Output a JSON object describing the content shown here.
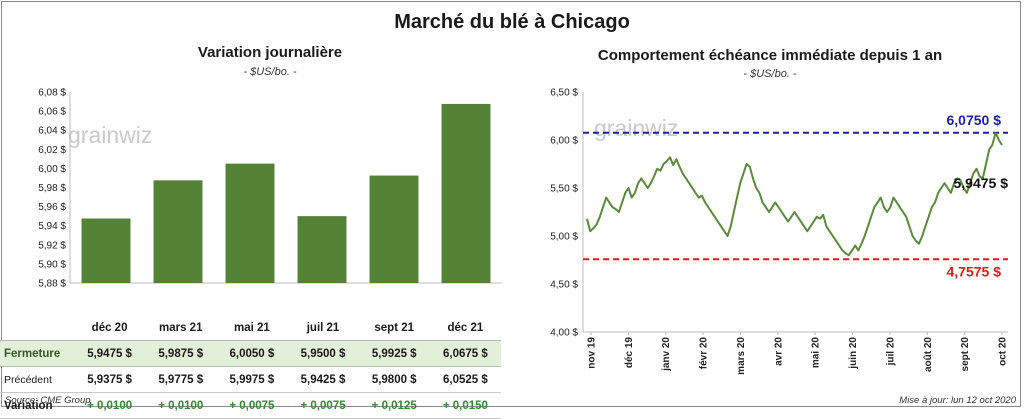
{
  "title": "Marché du blé à Chicago",
  "left_chart": {
    "title": "Variation journalière",
    "unit": "- $US/bo. -",
    "watermark": "grainwiz"
  },
  "right_chart": {
    "title": "Comportement  échéance immédiate depuis 1 an",
    "unit": "- $US/bo. -",
    "watermark": "grainwiz",
    "max_label": "6,0750 $",
    "last_label": "5,9475 $",
    "min_label": "4,7575 $"
  },
  "table": {
    "headers": [
      "déc 20",
      "mars 21",
      "mai 21",
      "juil 21",
      "sept 21",
      "déc 21"
    ],
    "rows": {
      "fermeture": {
        "label": "Fermeture",
        "values": [
          "5,9475  $",
          "5,9875  $",
          "6,0050  $",
          "5,9500  $",
          "5,9925  $",
          "6,0675  $"
        ]
      },
      "precedent": {
        "label": "Précédent",
        "values": [
          "5,9375  $",
          "5,9775  $",
          "5,9975  $",
          "5,9425  $",
          "5,9800  $",
          "6,0525  $"
        ]
      },
      "variation": {
        "label": "Variation",
        "values": [
          "+ 0,0100",
          "+ 0,0100",
          "+ 0,0075",
          "+ 0,0075",
          "+ 0,0125",
          "+ 0,0150"
        ]
      }
    }
  },
  "footer": {
    "source": "Source: CME Group",
    "update": "Mise à jour: lun 12 oct 2020"
  },
  "colors": {
    "bar": "#548235",
    "line": "#5a8a3a",
    "max_line": "#1f1fa8",
    "min_line": "#e21b1b"
  },
  "chart_data": [
    {
      "type": "bar",
      "title": "Variation journalière",
      "ylabel": "$US/bo.",
      "categories": [
        "déc 20",
        "mars 21",
        "mai 21",
        "juil 21",
        "sept 21",
        "déc 21"
      ],
      "values": [
        5.9475,
        5.9875,
        6.005,
        5.95,
        5.9925,
        6.0675
      ],
      "ylim": [
        5.88,
        6.08
      ],
      "yticks": [
        5.88,
        5.9,
        5.92,
        5.94,
        5.96,
        5.98,
        6.0,
        6.02,
        6.04,
        6.06,
        6.08
      ],
      "ytick_labels": [
        "5,88 $",
        "5,90 $",
        "5,92 $",
        "5,94 $",
        "5,96 $",
        "5,98 $",
        "6,00 $",
        "6,02 $",
        "6,04 $",
        "6,06 $",
        "6,08 $"
      ]
    },
    {
      "type": "line",
      "title": "Comportement  échéance immédiate depuis 1 an",
      "ylabel": "$US/bo.",
      "ylim": [
        4.0,
        6.5
      ],
      "yticks": [
        4.0,
        4.5,
        5.0,
        5.5,
        6.0,
        6.5
      ],
      "ytick_labels": [
        "4,00 $",
        "4,50 $",
        "5,00 $",
        "5,50 $",
        "6,00 $",
        "6,50 $"
      ],
      "x_labels": [
        "nov 19",
        "déc 19",
        "janv 20",
        "févr 20",
        "mars 20",
        "avr 20",
        "mai 20",
        "juin 20",
        "juil 20",
        "août 20",
        "sept 20",
        "oct 20"
      ],
      "reference_lines": [
        {
          "name": "max",
          "value": 6.075,
          "label": "6,0750 $"
        },
        {
          "name": "min",
          "value": 4.7575,
          "label": "4,7575 $"
        }
      ],
      "last_value": 5.9475,
      "last_label": "5,9475 $",
      "values": [
        5.18,
        5.05,
        5.08,
        5.12,
        5.2,
        5.3,
        5.4,
        5.35,
        5.3,
        5.28,
        5.25,
        5.35,
        5.45,
        5.5,
        5.4,
        5.45,
        5.55,
        5.6,
        5.55,
        5.5,
        5.55,
        5.62,
        5.7,
        5.68,
        5.75,
        5.78,
        5.82,
        5.74,
        5.8,
        5.72,
        5.65,
        5.6,
        5.55,
        5.5,
        5.45,
        5.4,
        5.42,
        5.35,
        5.3,
        5.25,
        5.2,
        5.15,
        5.1,
        5.05,
        5.0,
        5.1,
        5.25,
        5.4,
        5.55,
        5.65,
        5.75,
        5.72,
        5.6,
        5.5,
        5.45,
        5.35,
        5.3,
        5.25,
        5.3,
        5.35,
        5.3,
        5.25,
        5.2,
        5.15,
        5.2,
        5.25,
        5.2,
        5.15,
        5.1,
        5.05,
        5.1,
        5.15,
        5.2,
        5.18,
        5.22,
        5.1,
        5.05,
        5.0,
        4.95,
        4.9,
        4.85,
        4.82,
        4.8,
        4.85,
        4.9,
        4.85,
        4.92,
        5.0,
        5.1,
        5.2,
        5.3,
        5.35,
        5.4,
        5.3,
        5.25,
        5.3,
        5.4,
        5.35,
        5.3,
        5.25,
        5.2,
        5.1,
        5.0,
        4.95,
        4.92,
        5.0,
        5.1,
        5.2,
        5.3,
        5.35,
        5.45,
        5.5,
        5.55,
        5.5,
        5.45,
        5.55,
        5.6,
        5.58,
        5.5,
        5.45,
        5.55,
        5.65,
        5.7,
        5.62,
        5.6,
        5.75,
        5.9,
        5.95,
        6.075,
        6.0,
        5.9475
      ]
    }
  ]
}
